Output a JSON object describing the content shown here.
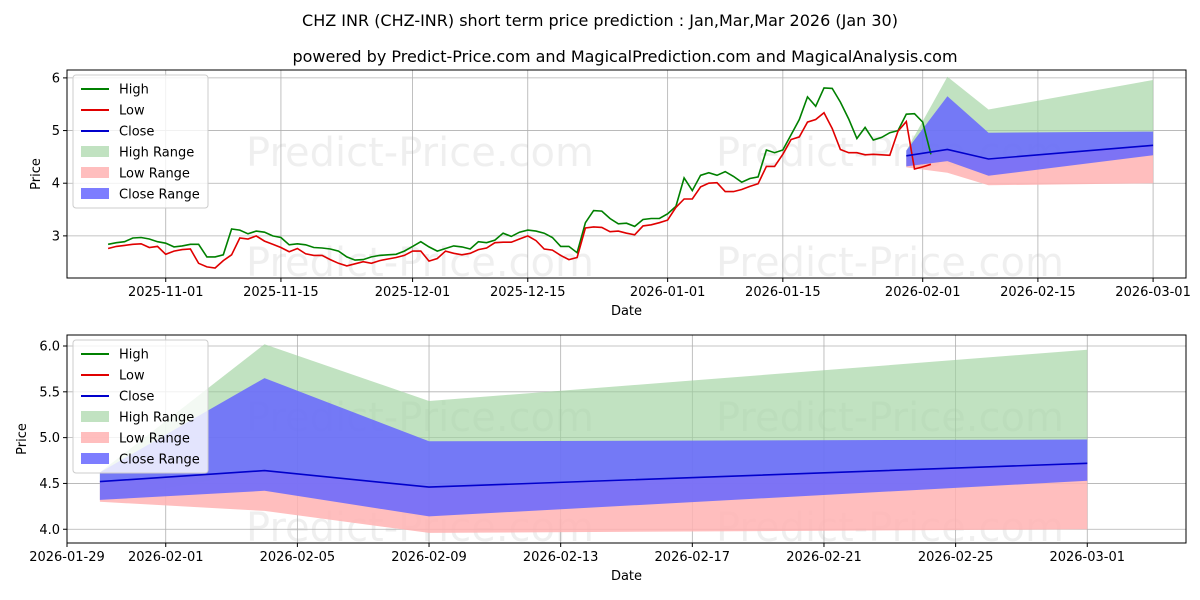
{
  "page": {
    "title": "CHZ INR (CHZ-INR) short term price prediction : Jan,Mar,Mar 2026 (Jan 30)",
    "subtitle": "powered by Predict-Price.com and MagicalPrediction.com and MagicalAnalysis.com",
    "watermark": "Predict-Price.com"
  },
  "colors": {
    "high": "#008000",
    "low": "#e00000",
    "close": "#0000cc",
    "high_range": "#9fd39f",
    "low_range": "#ffb3b3",
    "close_range": "#6666ff"
  },
  "legend": [
    "High",
    "Low",
    "Close",
    "High Range",
    "Low Range",
    "Close Range"
  ],
  "chart_data": [
    {
      "type": "line",
      "title": "CHZ INR (CHZ-INR) short term price prediction : Jan,Mar,Mar 2026 (Jan 30)",
      "xlabel": "Date",
      "ylabel": "Price",
      "xlim": [
        "2025-10-20",
        "2026-03-05"
      ],
      "ylim": [
        2.2,
        6.15
      ],
      "x_ticks": [
        "2025-11-01",
        "2025-11-15",
        "2025-12-01",
        "2025-12-15",
        "2026-01-01",
        "2026-01-15",
        "2026-02-01",
        "2026-02-15",
        "2026-03-01"
      ],
      "y_ticks": [
        3,
        4,
        5,
        6
      ],
      "history_start": "2025-10-25",
      "high": [
        2.84,
        2.87,
        2.89,
        2.96,
        2.97,
        2.94,
        2.89,
        2.86,
        2.79,
        2.81,
        2.84,
        2.84,
        2.6,
        2.6,
        2.64,
        3.13,
        3.11,
        3.04,
        3.09,
        3.07,
        3.0,
        2.97,
        2.83,
        2.85,
        2.83,
        2.78,
        2.77,
        2.75,
        2.71,
        2.6,
        2.54,
        2.55,
        2.6,
        2.63,
        2.64,
        2.65,
        2.71,
        2.8,
        2.89,
        2.79,
        2.71,
        2.76,
        2.81,
        2.79,
        2.75,
        2.89,
        2.87,
        2.92,
        3.05,
        2.99,
        3.07,
        3.11,
        3.09,
        3.05,
        2.97,
        2.8,
        2.8,
        2.68,
        3.25,
        3.48,
        3.47,
        3.33,
        3.23,
        3.24,
        3.18,
        3.31,
        3.33,
        3.33,
        3.42,
        3.56,
        4.1,
        3.86,
        4.15,
        4.2,
        4.15,
        4.22,
        4.13,
        4.02,
        4.09,
        4.12,
        4.63,
        4.58,
        4.63,
        4.92,
        5.21,
        5.64,
        5.46,
        5.81,
        5.8,
        5.54,
        5.22,
        4.85,
        5.06,
        4.82,
        4.87,
        4.96,
        5.0,
        5.31,
        5.32,
        5.16,
        4.55
      ],
      "low": [
        2.76,
        2.8,
        2.82,
        2.84,
        2.85,
        2.78,
        2.8,
        2.65,
        2.71,
        2.74,
        2.75,
        2.48,
        2.41,
        2.39,
        2.53,
        2.64,
        2.96,
        2.94,
        3.0,
        2.9,
        2.84,
        2.78,
        2.7,
        2.76,
        2.66,
        2.63,
        2.63,
        2.55,
        2.48,
        2.43,
        2.47,
        2.51,
        2.48,
        2.53,
        2.56,
        2.59,
        2.63,
        2.71,
        2.71,
        2.52,
        2.57,
        2.71,
        2.67,
        2.64,
        2.67,
        2.74,
        2.77,
        2.87,
        2.88,
        2.88,
        2.94,
        3.0,
        2.91,
        2.75,
        2.73,
        2.63,
        2.55,
        2.59,
        3.15,
        3.17,
        3.16,
        3.08,
        3.09,
        3.05,
        3.02,
        3.19,
        3.21,
        3.25,
        3.3,
        3.54,
        3.7,
        3.7,
        3.93,
        4.0,
        4.01,
        3.84,
        3.84,
        3.88,
        3.94,
        3.99,
        4.32,
        4.32,
        4.55,
        4.83,
        4.88,
        5.16,
        5.21,
        5.34,
        5.04,
        4.64,
        4.58,
        4.58,
        4.54,
        4.55,
        4.54,
        4.53,
        4.99,
        5.17,
        4.27,
        4.31,
        4.36
      ],
      "forecast_dates": [
        "2026-01-30",
        "2026-02-04",
        "2026-02-09",
        "2026-03-01"
      ],
      "close_forecast": [
        4.52,
        4.64,
        4.46,
        4.72
      ],
      "high_range": {
        "upper": [
          4.62,
          6.02,
          5.4,
          5.96
        ],
        "lower": [
          4.32,
          4.64,
          4.46,
          4.72
        ]
      },
      "low_range": {
        "upper": [
          4.52,
          4.64,
          4.46,
          4.72
        ],
        "lower": [
          4.3,
          4.2,
          3.96,
          4.0
        ]
      },
      "close_range": {
        "upper": [
          4.62,
          5.65,
          4.96,
          4.98
        ],
        "lower": [
          4.32,
          4.42,
          4.14,
          4.53
        ]
      }
    },
    {
      "type": "area",
      "xlabel": "Date",
      "ylabel": "Price",
      "xlim": [
        "2026-01-29",
        "2026-03-04"
      ],
      "ylim": [
        3.85,
        6.12
      ],
      "x_ticks": [
        "2026-01-29",
        "2026-02-01",
        "2026-02-05",
        "2026-02-09",
        "2026-02-13",
        "2026-02-17",
        "2026-02-21",
        "2026-02-25",
        "2026-03-01"
      ],
      "y_ticks": [
        "4.0",
        "4.5",
        "5.0",
        "5.5",
        "6.0"
      ],
      "forecast_dates": [
        "2026-01-30",
        "2026-02-04",
        "2026-02-09",
        "2026-03-01"
      ],
      "close_forecast": [
        4.52,
        4.64,
        4.46,
        4.72
      ],
      "high_range": {
        "upper": [
          4.62,
          6.02,
          5.4,
          5.96
        ],
        "lower": [
          4.32,
          4.64,
          4.46,
          4.72
        ]
      },
      "low_range": {
        "upper": [
          4.52,
          4.64,
          4.46,
          4.72
        ],
        "lower": [
          4.3,
          4.2,
          3.96,
          4.0
        ]
      },
      "close_range": {
        "upper": [
          4.62,
          5.65,
          4.96,
          4.98
        ],
        "lower": [
          4.32,
          4.42,
          4.14,
          4.53
        ]
      }
    }
  ]
}
